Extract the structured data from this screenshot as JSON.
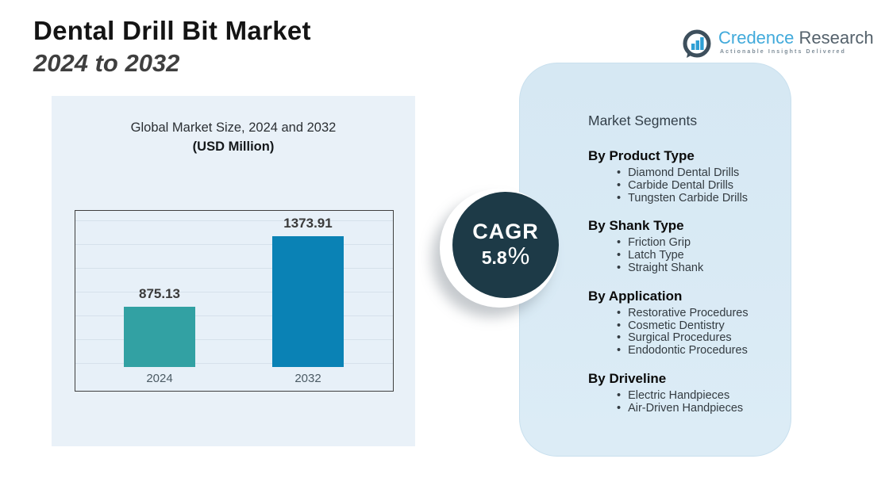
{
  "page": {
    "title_line1": "Dental Drill Bit Market",
    "title_line2": "2024 to 2032"
  },
  "logo": {
    "brand_primary": "Credence",
    "brand_secondary": " Research",
    "tagline": "Actionable Insights Delivered",
    "icon": "bar-chart-bubble-icon",
    "colors": {
      "brand_primary": "#41aadb",
      "brand_secondary": "#55626c",
      "icon_dark": "#3d4f5c",
      "icon_bars": "#2e9fd4"
    }
  },
  "chart_data": {
    "type": "bar",
    "title": "Global Market Size, 2024 and 2032",
    "subtitle": "(USD Million)",
    "categories": [
      "2024",
      "2032"
    ],
    "values": [
      875.13,
      1373.91
    ],
    "value_labels": [
      "875.13",
      "1373.91"
    ],
    "colors": [
      "#32a1a3",
      "#0a82b5"
    ],
    "ylim": [
      450,
      1550
    ],
    "grid": true,
    "legend": false
  },
  "cagr": {
    "label": "CAGR",
    "value": "5.8",
    "percent_sign": "%",
    "circle_color": "#1d3a47"
  },
  "segments": {
    "title": "Market Segments",
    "sections": [
      {
        "heading": "By Product Type",
        "items": [
          "Diamond Dental Drills",
          "Carbide Dental Drills",
          "Tungsten Carbide Drills"
        ]
      },
      {
        "heading": "By Shank Type",
        "items": [
          "Friction Grip",
          "Latch Type",
          "Straight Shank"
        ]
      },
      {
        "heading": "By Application",
        "items": [
          "Restorative Procedures",
          "Cosmetic Dentistry",
          "Surgical Procedures",
          "Endodontic Procedures"
        ]
      },
      {
        "heading": "By Driveline",
        "items": [
          "Electric Handpieces",
          "Air-Driven Handpieces"
        ]
      }
    ]
  }
}
